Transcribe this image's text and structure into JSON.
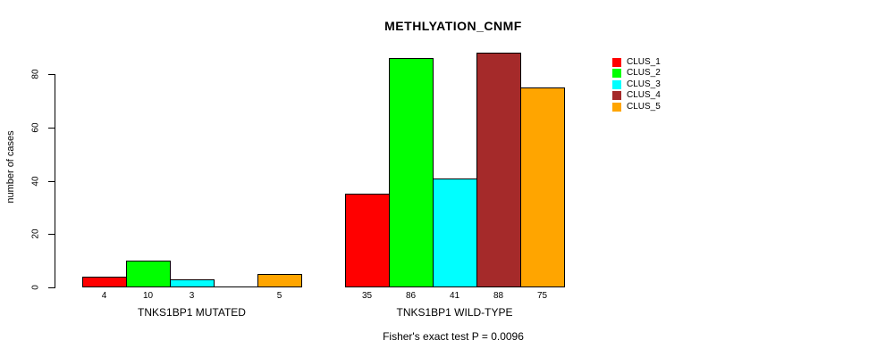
{
  "chart_data": {
    "type": "bar",
    "title": "METHLYATION_CNMF",
    "ylabel": "number of cases",
    "xlabel": "",
    "ylim": [
      0,
      88
    ],
    "yticks": [
      0,
      20,
      40,
      60,
      80
    ],
    "grid": false,
    "legend_position": "right-outside",
    "categories": [
      "TNKS1BP1 MUTATED",
      "TNKS1BP1 WILD-TYPE"
    ],
    "series": [
      {
        "name": "CLUS_1",
        "color": "#FF0000",
        "values": [
          4,
          35
        ]
      },
      {
        "name": "CLUS_2",
        "color": "#00FF00",
        "values": [
          10,
          86
        ]
      },
      {
        "name": "CLUS_3",
        "color": "#00FFFF",
        "values": [
          3,
          41
        ]
      },
      {
        "name": "CLUS_4",
        "color": "#A52A2A",
        "values": [
          0,
          88
        ]
      },
      {
        "name": "CLUS_5",
        "color": "#FFA500",
        "values": [
          5,
          75
        ]
      }
    ],
    "bar_value_labels": [
      [
        "4",
        "10",
        "3",
        "",
        "5"
      ],
      [
        "35",
        "86",
        "41",
        "88",
        "75"
      ]
    ],
    "annotation": "Fisher's exact test P = 0.0096",
    "bar_border_color": "#000000",
    "axis_color": "#000000"
  }
}
